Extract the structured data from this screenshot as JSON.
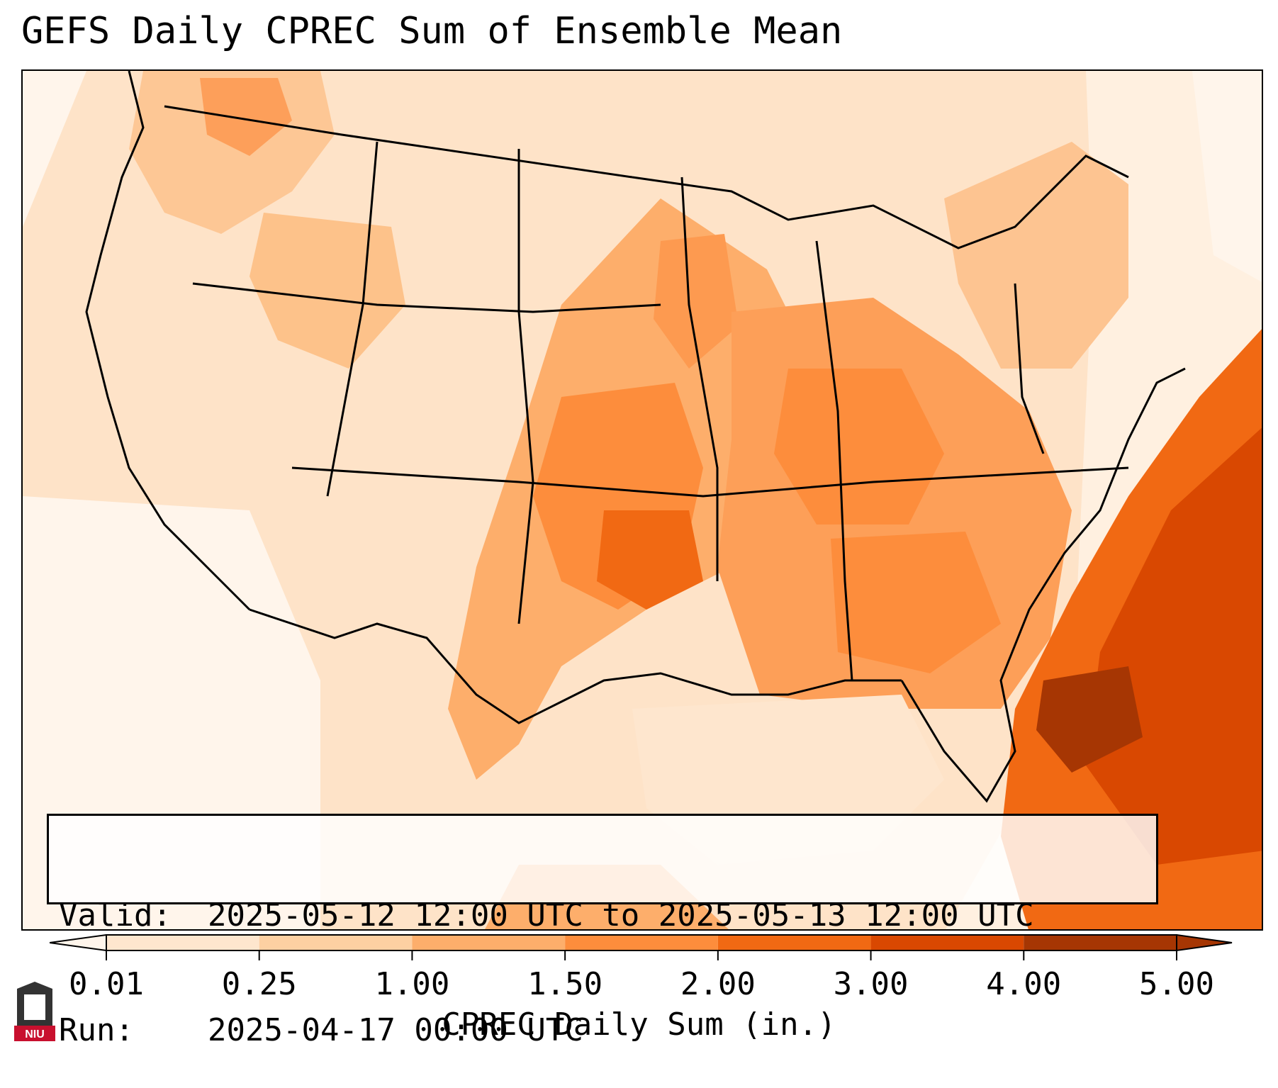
{
  "title": "GEFS Daily CPREC Sum of Ensemble Mean",
  "info": {
    "valid_label": "Valid:",
    "valid_value": "2025-05-12 12:00 UTC to 2025-05-13 12:00 UTC",
    "run_label": "Run:",
    "run_value": "2025-04-17 00:00 UTC"
  },
  "colorbar": {
    "label": "CPREC Daily Sum (in.)",
    "ticks": [
      "0.01",
      "0.25",
      "1.00",
      "1.50",
      "2.00",
      "3.00",
      "4.00",
      "5.00"
    ],
    "colors": [
      "#fff5eb",
      "#fee6ce",
      "#fdd0a2",
      "#fdae6b",
      "#fd8d3c",
      "#f16913",
      "#d94801",
      "#a63603"
    ],
    "extend": "both"
  },
  "logo": {
    "text": "NIU"
  },
  "colors": {
    "background": "#ffffff",
    "border": "#000000",
    "low": "#fff5eb",
    "high": "#7f2704"
  }
}
